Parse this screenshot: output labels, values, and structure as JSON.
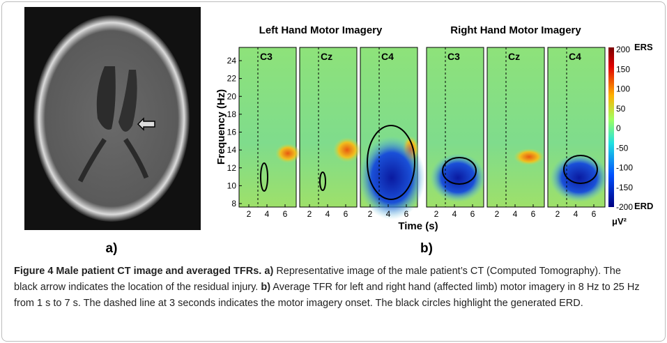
{
  "figure": {
    "panel_a": {
      "label": "a)"
    },
    "panel_b": {
      "label": "b)",
      "group_titles": [
        "Left Hand Motor Imagery",
        "Right Hand Motor Imagery"
      ],
      "channels": [
        "C3",
        "Cz",
        "C4",
        "C3",
        "Cz",
        "C4"
      ],
      "y_axis_label": "Frequency (Hz)",
      "y_ticks": [
        "24",
        "22",
        "20",
        "18",
        "16",
        "14",
        "12",
        "10",
        "8"
      ],
      "x_axis_label": "Time (s)",
      "x_ticks": [
        "2",
        "4",
        "6"
      ],
      "colorbar_ticks": [
        "200",
        "150",
        "100",
        "50",
        "0",
        "-50",
        "-100",
        "-150",
        "-200"
      ],
      "colorbar_top_label": "ERS",
      "colorbar_bottom_label": "ERD",
      "colorbar_unit": "μV²"
    }
  },
  "caption": {
    "title": "Figure 4 Male patient CT image and averaged TFRs.",
    "a_label": "a)",
    "a_text": "Representative image of the male patient’s CT (Computed Tomography). The black arrow indicates the location of the residual injury.",
    "b_label": "b)",
    "b_text": "Average TFR for left and right hand (affected limb) motor imagery in 8 Hz to 25 Hz from 1 s to 7 s. The dashed line at 3 seconds indicates the motor imagery onset. The black circles highlight the generated ERD."
  }
}
